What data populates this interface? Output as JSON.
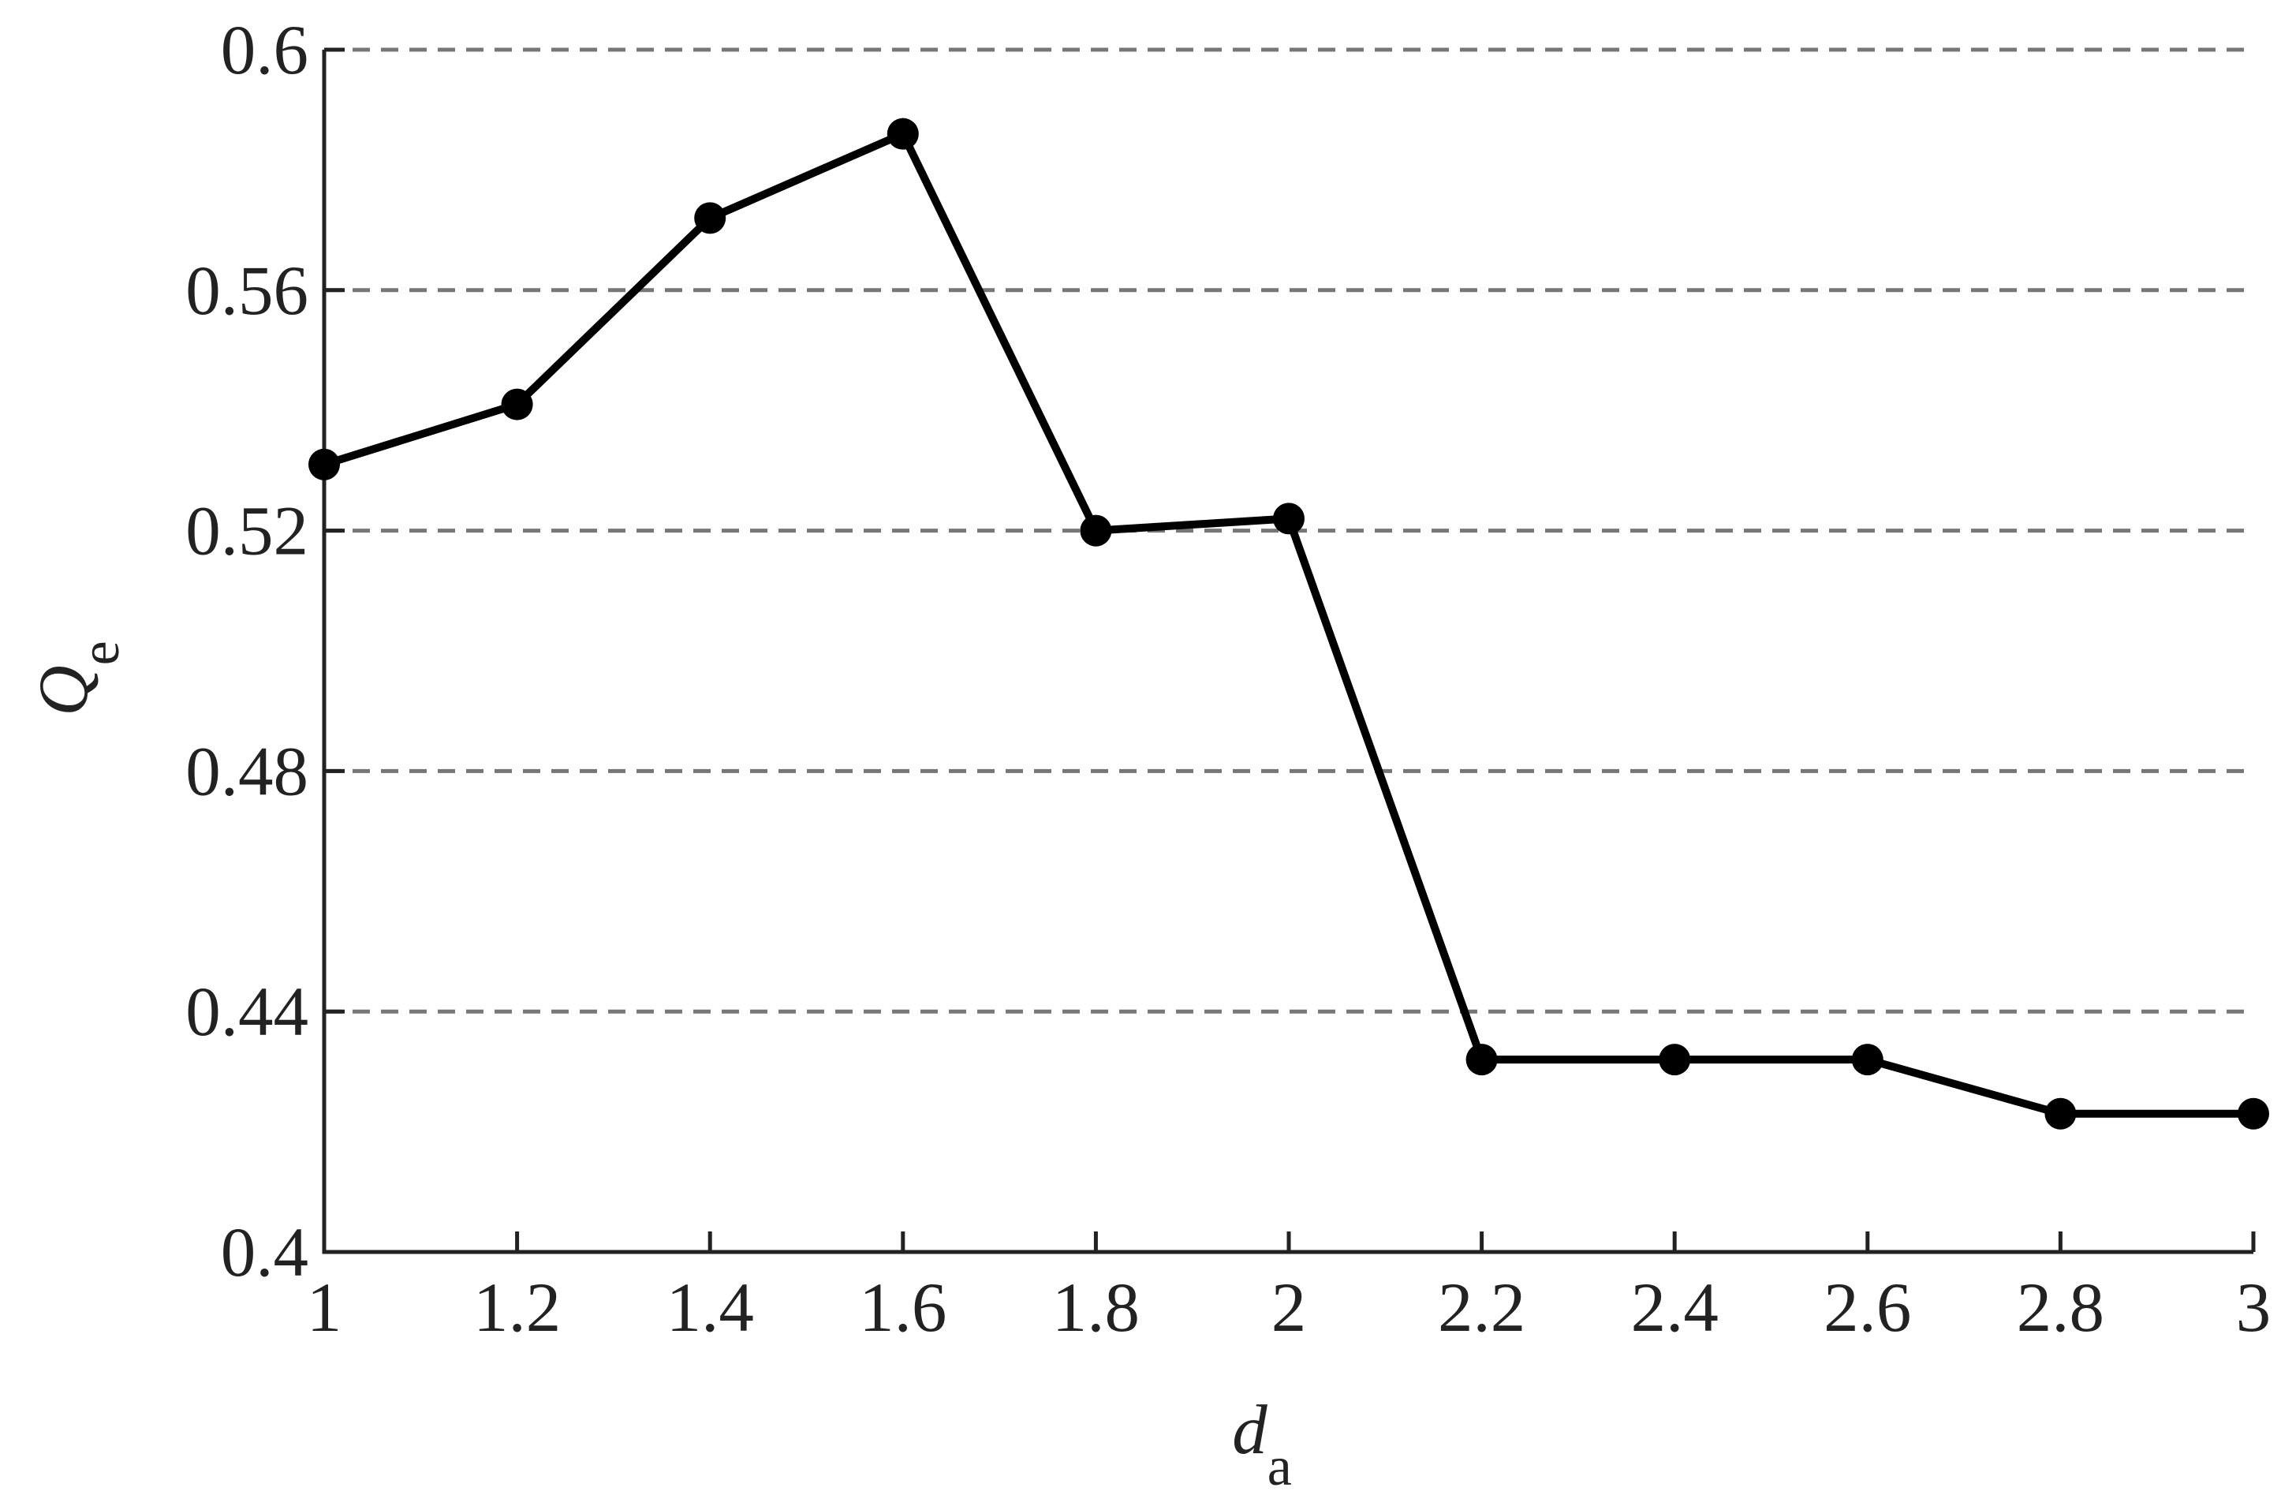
{
  "chart_data": {
    "type": "line",
    "xlabel": "d",
    "xlabel_sub": "a",
    "ylabel": "Q",
    "ylabel_sub": "e",
    "x": [
      1,
      1.2,
      1.4,
      1.6,
      1.8,
      2,
      2.2,
      2.4,
      2.6,
      2.8,
      3
    ],
    "series": [
      {
        "color": "#000000",
        "values": [
          0.531,
          0.541,
          0.572,
          0.586,
          0.52,
          0.522,
          0.432,
          0.432,
          0.432,
          0.423,
          0.423
        ]
      }
    ],
    "xlim": [
      1,
      3
    ],
    "xticks": [
      1,
      1.2,
      1.4,
      1.6,
      1.8,
      2,
      2.2,
      2.4,
      2.6,
      2.8,
      3
    ],
    "ylim": [
      0.4,
      0.6
    ],
    "yticks": [
      0.4,
      0.44,
      0.48,
      0.52,
      0.56,
      0.6
    ],
    "grid": true
  }
}
